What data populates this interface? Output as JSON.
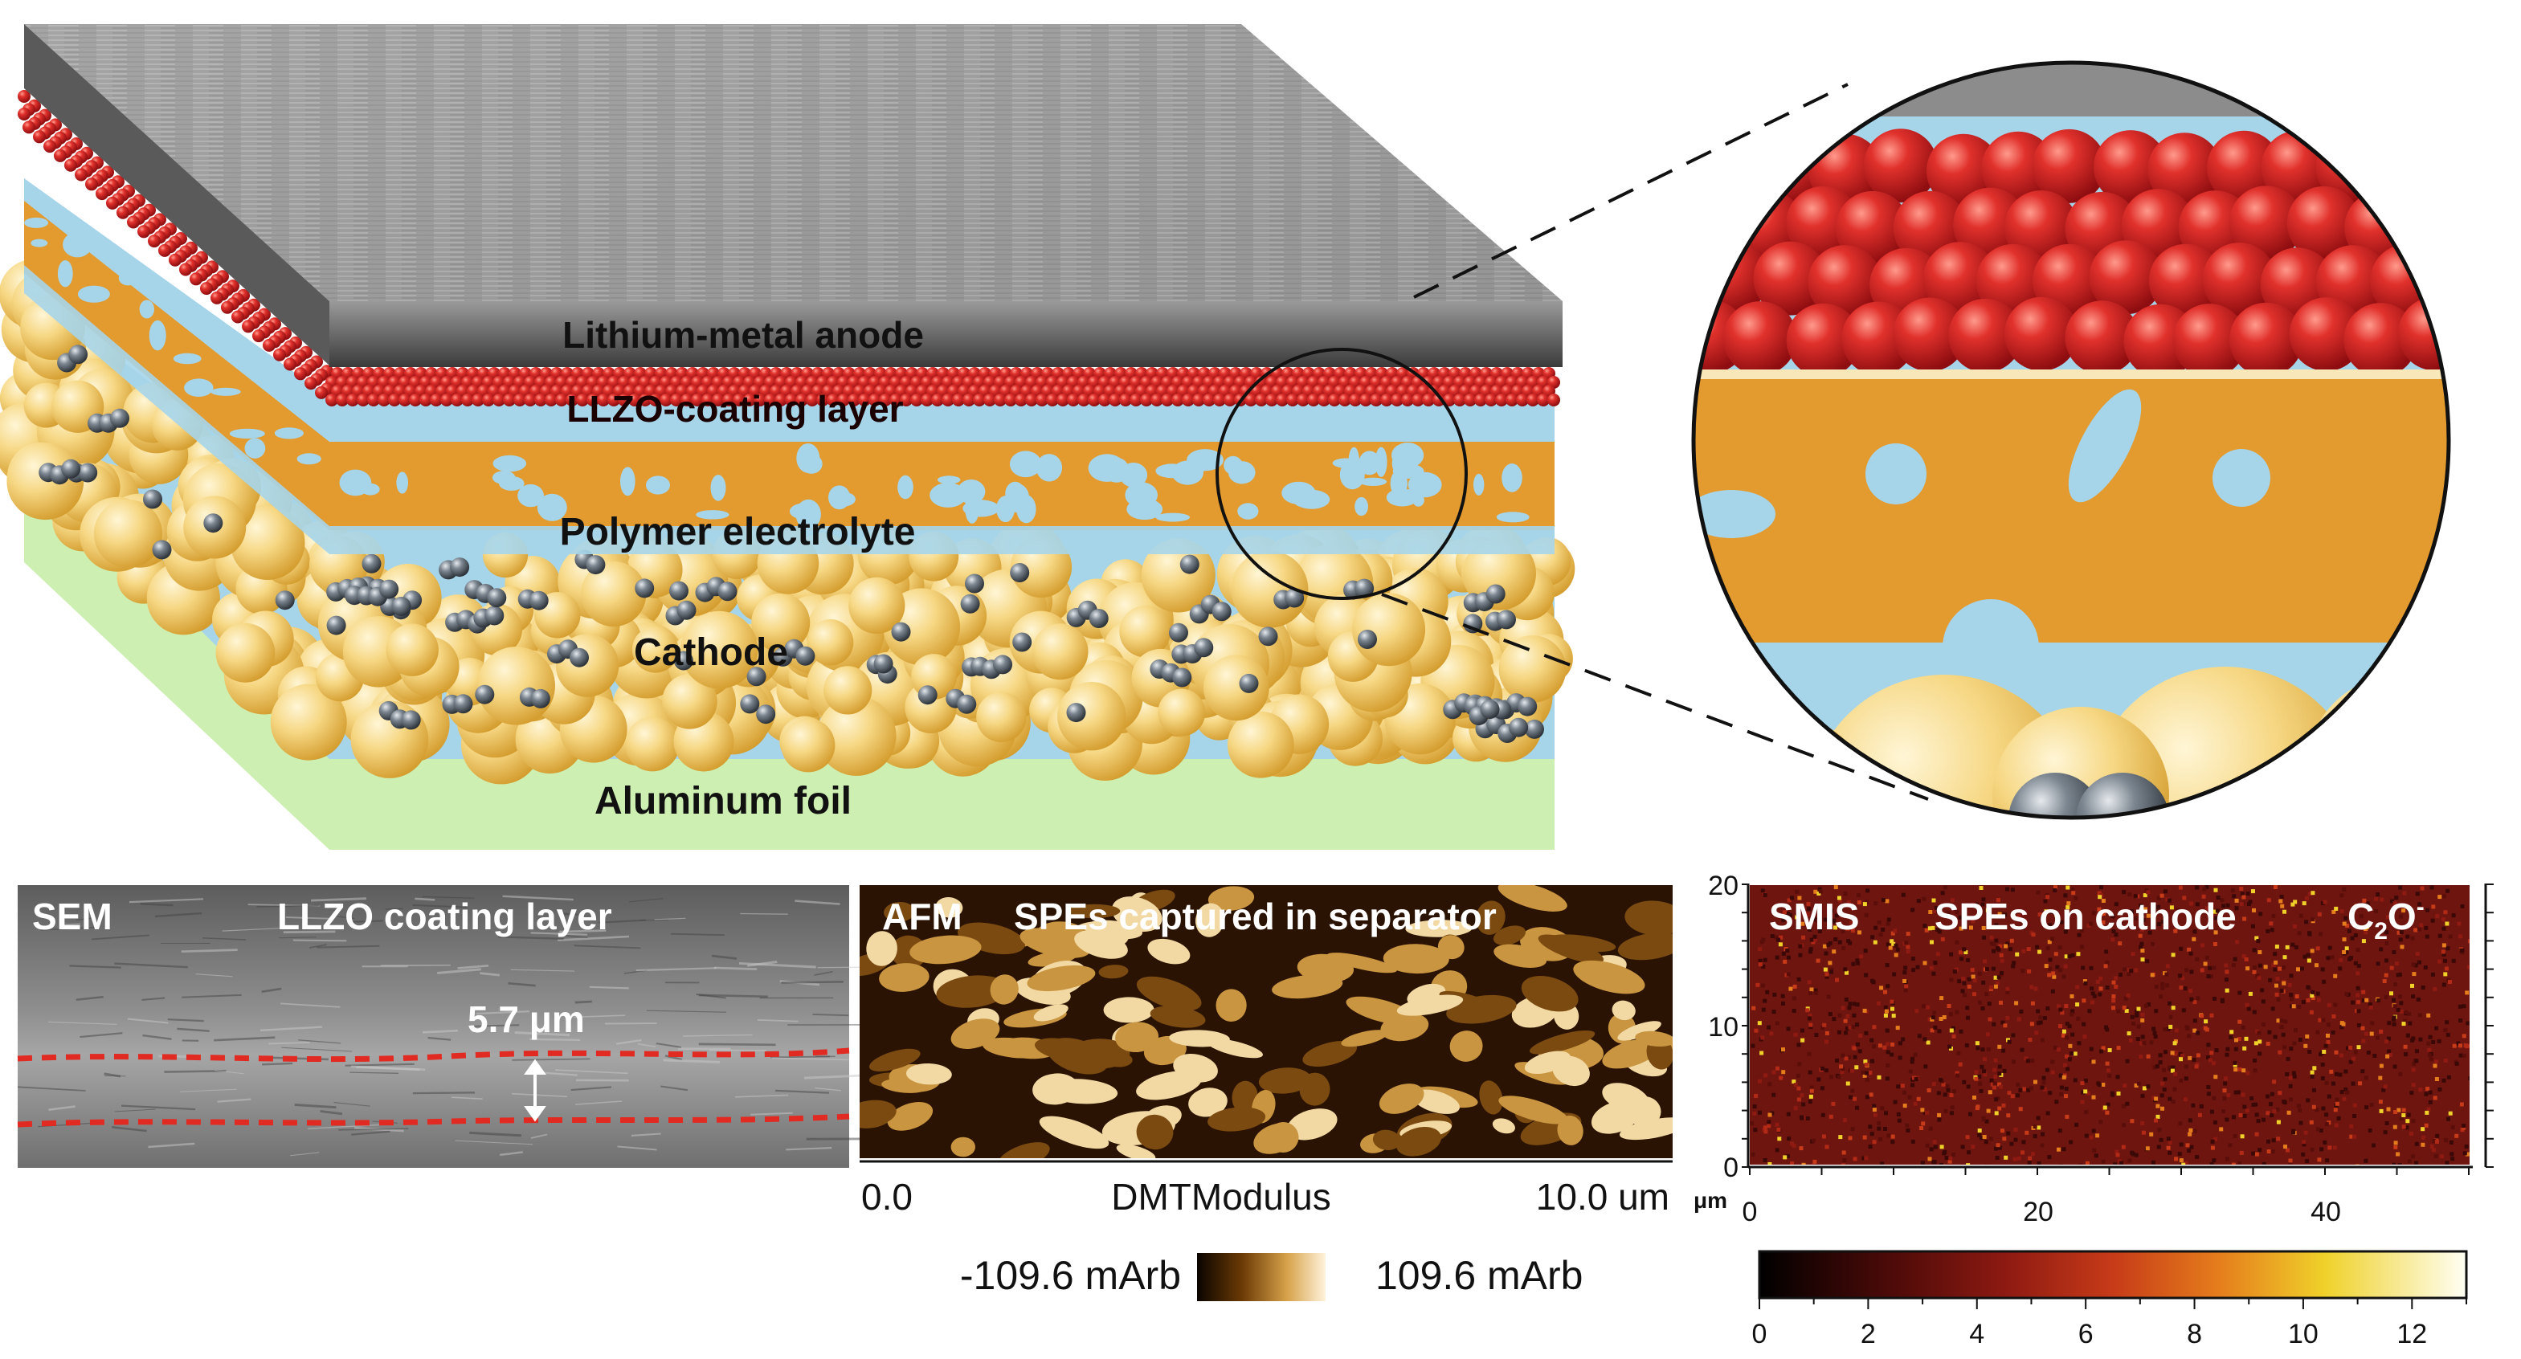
{
  "schematic": {
    "labels": {
      "anode": "Lithium-metal anode",
      "llzo": "LLZO-coating layer",
      "polymer": "Polymer electrolyte",
      "cathode": "Cathode",
      "foil": "Aluminum foil"
    }
  },
  "sem_panel": {
    "tag": "SEM",
    "title": "LLZO coating layer",
    "thickness": "5.7 μm"
  },
  "afm_panel": {
    "tag": "AFM",
    "title": "SPEs captured in separator",
    "axis_start": "0.0",
    "channel": "DMTModulus",
    "axis_end": "10.0 um",
    "scale_min": "-109.6 mArb",
    "scale_max": "109.6 mArb"
  },
  "smis_panel": {
    "tag": "SMIS",
    "title": "SPEs on cathode",
    "ion_main": "C",
    "ion_sub": "2",
    "ion_tail": "O",
    "ion_sup": "-",
    "unit": "μm",
    "y_ticks": [
      "0",
      "10",
      "20"
    ],
    "x_ticks": [
      "0",
      "20",
      "40"
    ],
    "cb_ticks": [
      "0",
      "2",
      "4",
      "6",
      "8",
      "10",
      "12"
    ]
  },
  "colors": {
    "llzo_red": "#d21e24",
    "polymer_orange": "#e39a2e",
    "electrolyte_blue": "#a6d5ea",
    "cathode_gold": "#f1cb6a",
    "foil_green": "#cdf0b2",
    "anode_gray": "#8d8d8d"
  }
}
